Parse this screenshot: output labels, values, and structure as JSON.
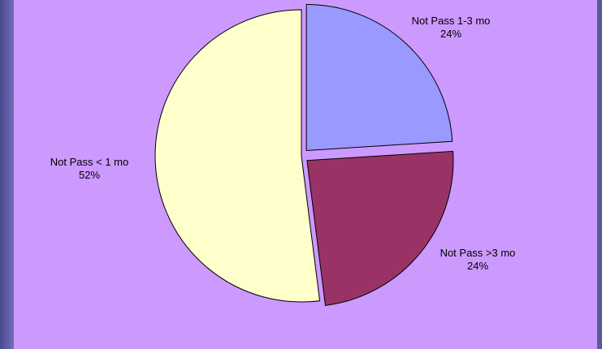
{
  "chart_data": {
    "type": "pie",
    "title": "",
    "slices": [
      {
        "label": "Not Pass 1-3 mo",
        "value": 24,
        "display": "24%",
        "color": "#9999ff",
        "exploded": true
      },
      {
        "label": "Not Pass >3 mo",
        "value": 24,
        "display": "24%",
        "color": "#993366",
        "exploded": true
      },
      {
        "label": "Not Pass < 1 mo",
        "value": 52,
        "display": "52%",
        "color": "#ffffcc",
        "exploded": false
      }
    ],
    "legend": "none",
    "label_placement": "outside"
  },
  "colors": {
    "plot_background": "#cc99ff",
    "frame": "#5a5a9a",
    "slice_outline": "#000000"
  }
}
